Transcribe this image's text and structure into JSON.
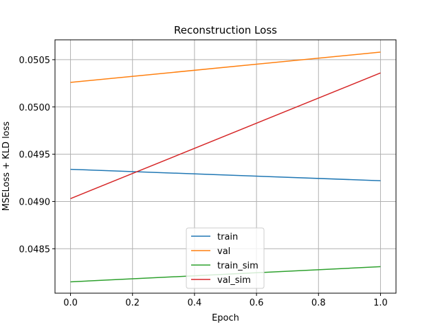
{
  "chart_data": {
    "type": "line",
    "title": "Reconstruction Loss",
    "xlabel": "Epoch",
    "ylabel": "MSELoss + KLD loss",
    "xlim": [
      -0.05,
      1.05
    ],
    "ylim": [
      0.04803,
      0.05071
    ],
    "xticks": [
      0.0,
      0.2,
      0.4,
      0.6,
      0.8,
      1.0
    ],
    "xtick_labels": [
      "0.0",
      "0.2",
      "0.4",
      "0.6",
      "0.8",
      "1.0"
    ],
    "yticks": [
      0.0485,
      0.049,
      0.0495,
      0.05,
      0.0505
    ],
    "ytick_labels": [
      "0.0485",
      "0.0490",
      "0.0495",
      "0.0500",
      "0.0505"
    ],
    "grid": true,
    "legend_position": "bottom-center",
    "x": [
      0,
      1
    ],
    "series": [
      {
        "name": "train",
        "color": "#1f77b4",
        "values": [
          0.04934,
          0.04922
        ]
      },
      {
        "name": "val",
        "color": "#ff7f0e",
        "values": [
          0.05026,
          0.05058
        ]
      },
      {
        "name": "train_sim",
        "color": "#2ca02c",
        "values": [
          0.04815,
          0.04831
        ]
      },
      {
        "name": "val_sim",
        "color": "#d62728",
        "values": [
          0.04903,
          0.05036
        ]
      }
    ]
  }
}
